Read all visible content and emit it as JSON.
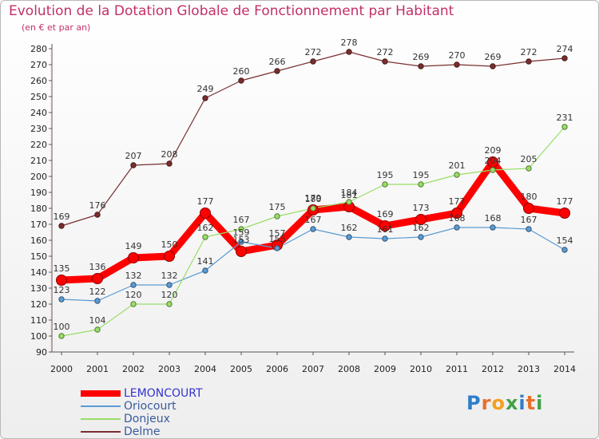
{
  "title": "Evolution de la Dotation Globale de Fonctionnement par Habitant",
  "subtitle": "(en € et par an)",
  "logo_text": "Proxiti",
  "chart_data": {
    "type": "line",
    "title": "Evolution de la Dotation Globale de Fonctionnement par Habitant",
    "subtitle": "(en € et par an)",
    "xlabel": "",
    "ylabel": "",
    "ylim": [
      90,
      280
    ],
    "y_ticks": [
      90,
      100,
      110,
      120,
      130,
      140,
      150,
      160,
      170,
      180,
      190,
      200,
      210,
      220,
      230,
      240,
      250,
      260,
      270,
      280
    ],
    "grid": false,
    "legend_position": "bottom-left",
    "x": [
      2000,
      2001,
      2002,
      2003,
      2004,
      2005,
      2006,
      2007,
      2008,
      2009,
      2010,
      2011,
      2012,
      2013,
      2014
    ],
    "series": [
      {
        "name": "LEMONCOURT",
        "color": "#ff0000",
        "values": [
          135,
          136,
          149,
          150,
          177,
          153,
          157,
          179,
          181,
          169,
          173,
          177,
          209,
          180,
          177
        ]
      },
      {
        "name": "Oriocourt",
        "color": "#5a9bd4",
        "values": [
          123,
          122,
          132,
          132,
          141,
          159,
          155,
          167,
          162,
          161,
          162,
          168,
          168,
          167,
          154
        ]
      },
      {
        "name": "Donjeux",
        "color": "#99dd66",
        "values": [
          100,
          104,
          120,
          120,
          162,
          167,
          175,
          180,
          184,
          195,
          195,
          201,
          204,
          205,
          231
        ]
      },
      {
        "name": "Delme",
        "color": "#7a2e2e",
        "values": [
          169,
          176,
          207,
          208,
          249,
          260,
          266,
          272,
          278,
          272,
          269,
          270,
          269,
          272,
          274
        ]
      }
    ]
  }
}
